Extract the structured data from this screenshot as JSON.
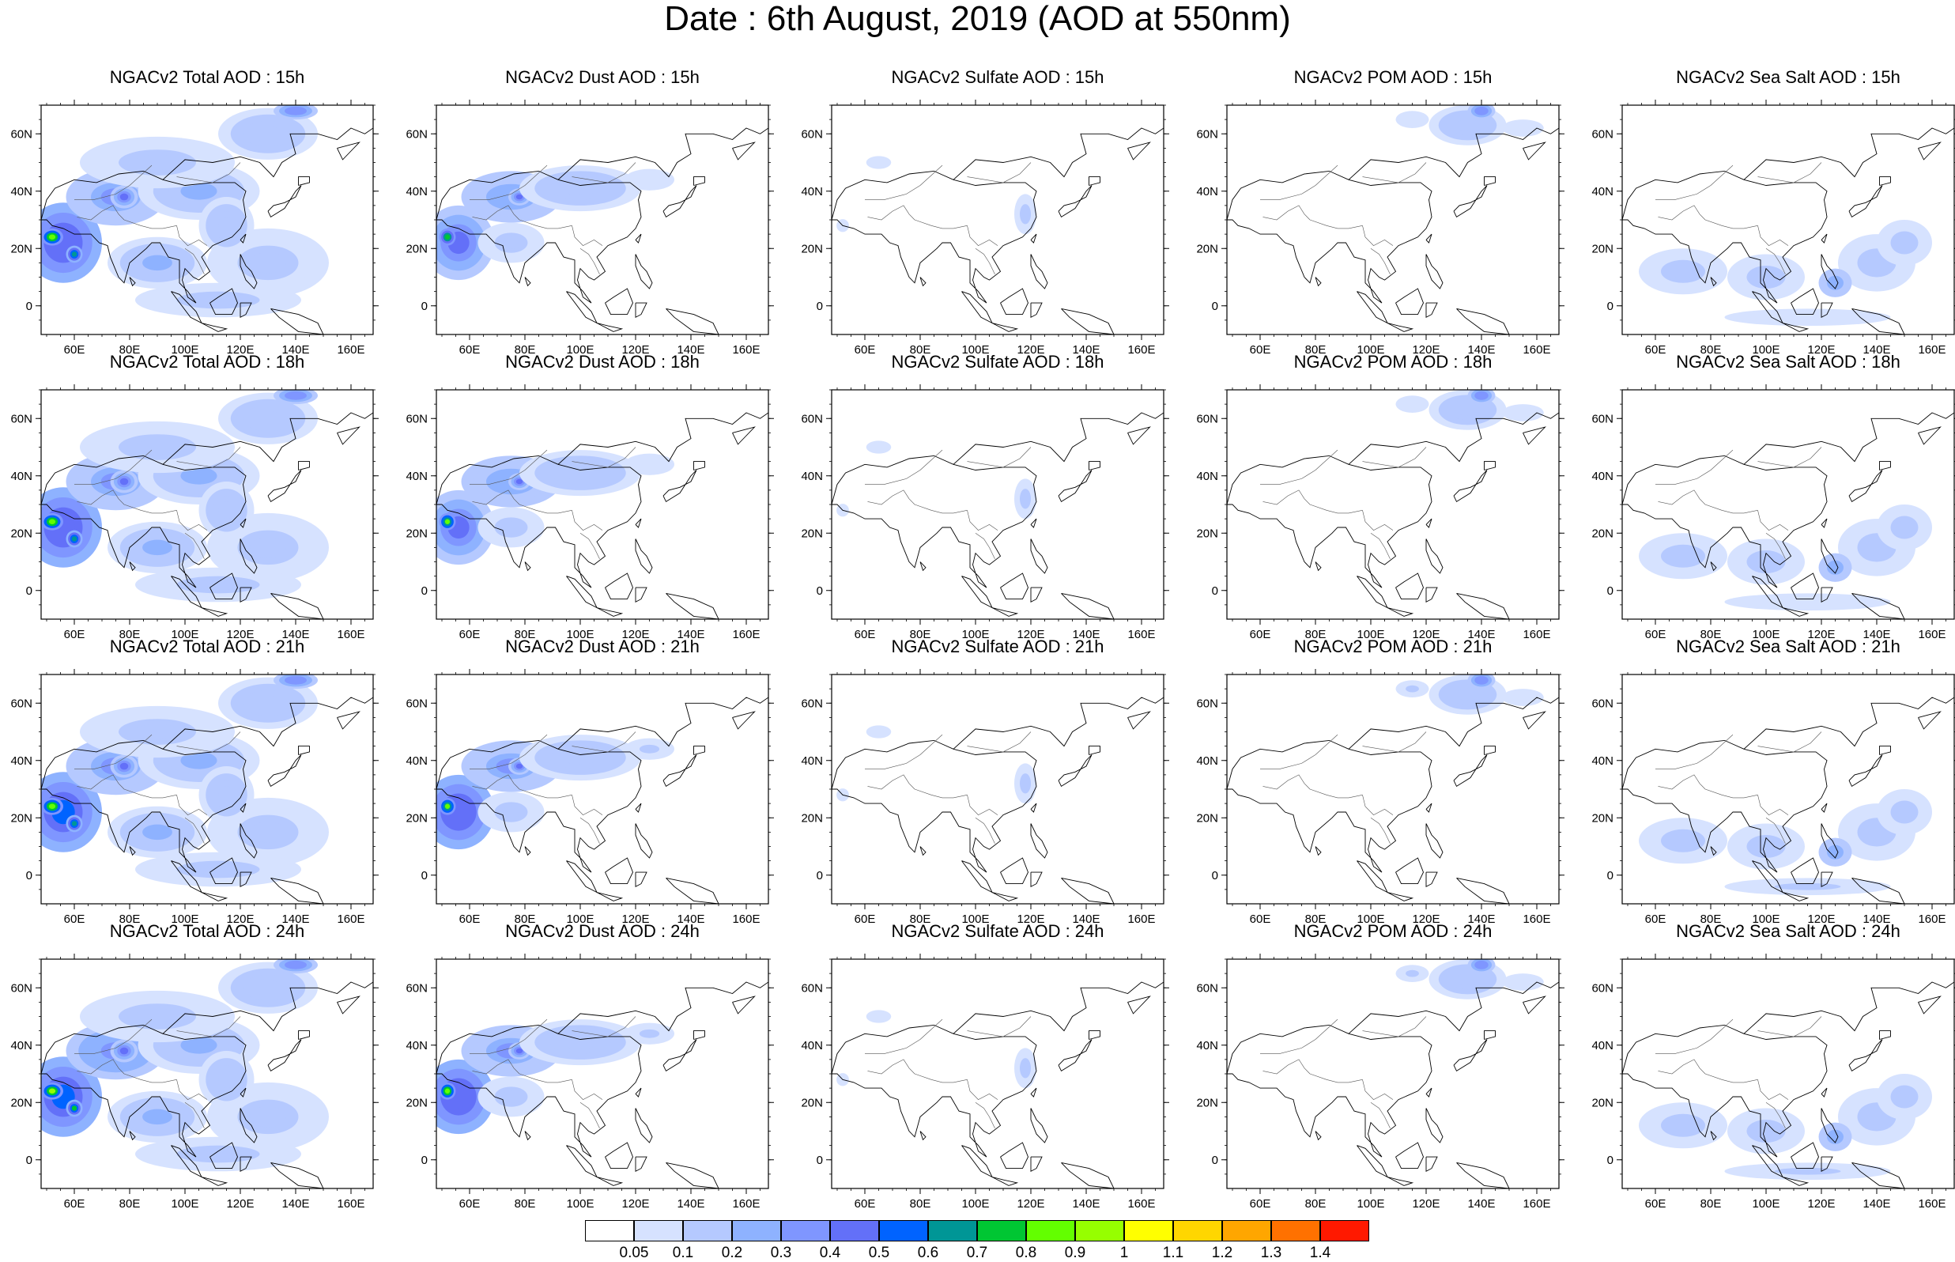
{
  "title": "Date : 6th August, 2019 (AOD at 550nm)",
  "map": {
    "lon_range": [
      48,
      168
    ],
    "lat_range": [
      -10,
      70
    ],
    "lon_ticks": [
      "60E",
      "80E",
      "100E",
      "120E",
      "140E",
      "160E"
    ],
    "lat_ticks": [
      "0",
      "20N",
      "40N",
      "60N"
    ]
  },
  "panels": [
    [
      {
        "title": "NGACv2 Total AOD : 15h",
        "field": "total",
        "hour": 15
      },
      {
        "title": "NGACv2 Dust AOD : 15h",
        "field": "dust",
        "hour": 15
      },
      {
        "title": "NGACv2 Sulfate AOD : 15h",
        "field": "sulfate",
        "hour": 15
      },
      {
        "title": "NGACv2 POM AOD : 15h",
        "field": "pom",
        "hour": 15
      },
      {
        "title": "NGACv2 Sea Salt AOD : 15h",
        "field": "seasalt",
        "hour": 15
      }
    ],
    [
      {
        "title": "NGACv2 Total AOD : 18h",
        "field": "total",
        "hour": 18
      },
      {
        "title": "NGACv2 Dust AOD : 18h",
        "field": "dust",
        "hour": 18
      },
      {
        "title": "NGACv2 Sulfate AOD : 18h",
        "field": "sulfate",
        "hour": 18
      },
      {
        "title": "NGACv2 POM AOD : 18h",
        "field": "pom",
        "hour": 18
      },
      {
        "title": "NGACv2 Sea Salt AOD : 18h",
        "field": "seasalt",
        "hour": 18
      }
    ],
    [
      {
        "title": "NGACv2 Total AOD : 21h",
        "field": "total",
        "hour": 21
      },
      {
        "title": "NGACv2 Dust AOD : 21h",
        "field": "dust",
        "hour": 21
      },
      {
        "title": "NGACv2 Sulfate AOD : 21h",
        "field": "sulfate",
        "hour": 21
      },
      {
        "title": "NGACv2 POM AOD : 21h",
        "field": "pom",
        "hour": 21
      },
      {
        "title": "NGACv2 Sea Salt AOD : 21h",
        "field": "seasalt",
        "hour": 21
      }
    ],
    [
      {
        "title": "NGACv2 Total AOD : 24h",
        "field": "total",
        "hour": 24
      },
      {
        "title": "NGACv2 Dust AOD : 24h",
        "field": "dust",
        "hour": 24
      },
      {
        "title": "NGACv2 Sulfate AOD : 24h",
        "field": "sulfate",
        "hour": 24
      },
      {
        "title": "NGACv2 POM AOD : 24h",
        "field": "pom",
        "hour": 24
      },
      {
        "title": "NGACv2 Sea Salt  AOD : 24h",
        "field": "seasalt",
        "hour": 24
      }
    ]
  ],
  "colorbar": {
    "labels": [
      "0.05",
      "0.1",
      "0.2",
      "0.3",
      "0.4",
      "0.5",
      "0.6",
      "0.7",
      "0.8",
      "0.9",
      "1",
      "1.1",
      "1.2",
      "1.3",
      "1.4"
    ],
    "colors": [
      "#ffffff",
      "#d6e2ff",
      "#b5c9ff",
      "#8eb2ff",
      "#7f96ff",
      "#6370f8",
      "#0063ff",
      "#009696",
      "#00c633",
      "#63ff00",
      "#96ff00",
      "#ffff00",
      "#ffd600",
      "#ffa600",
      "#ff7100",
      "#ff1900"
    ]
  },
  "plumes": {
    "total": [
      {
        "lon": 56,
        "lat": 22,
        "rlon": 14,
        "rlat": 14,
        "v": 0.4
      },
      {
        "lon": 52,
        "lat": 24,
        "rlon": 4,
        "rlat": 3,
        "v": 0.7
      },
      {
        "lon": 60,
        "lat": 18,
        "rlon": 3,
        "rlat": 3,
        "v": 0.55
      },
      {
        "lon": 75,
        "lat": 38,
        "rlon": 18,
        "rlat": 10,
        "v": 0.25
      },
      {
        "lon": 78,
        "lat": 38,
        "rlon": 5,
        "rlat": 4,
        "v": 0.35
      },
      {
        "lon": 105,
        "lat": 40,
        "rlon": 22,
        "rlat": 10,
        "v": 0.18
      },
      {
        "lon": 90,
        "lat": 50,
        "rlon": 28,
        "rlat": 9,
        "v": 0.12
      },
      {
        "lon": 90,
        "lat": 15,
        "rlon": 18,
        "rlat": 9,
        "v": 0.18
      },
      {
        "lon": 130,
        "lat": 15,
        "rlon": 22,
        "rlat": 12,
        "v": 0.12
      },
      {
        "lon": 130,
        "lat": 60,
        "rlon": 18,
        "rlat": 9,
        "v": 0.15
      },
      {
        "lon": 140,
        "lat": 68,
        "rlon": 8,
        "rlat": 3,
        "v": 0.3
      },
      {
        "lon": 112,
        "lat": 2,
        "rlon": 30,
        "rlat": 6,
        "v": 0.12
      },
      {
        "lon": 115,
        "lat": 28,
        "rlon": 10,
        "rlat": 10,
        "v": 0.14
      }
    ],
    "dust": [
      {
        "lon": 56,
        "lat": 22,
        "rlon": 13,
        "rlat": 13,
        "v": 0.38
      },
      {
        "lon": 52,
        "lat": 24,
        "rlon": 3,
        "rlat": 3,
        "v": 0.65
      },
      {
        "lon": 75,
        "lat": 38,
        "rlon": 18,
        "rlat": 9,
        "v": 0.24
      },
      {
        "lon": 78,
        "lat": 38,
        "rlon": 4,
        "rlat": 3,
        "v": 0.34
      },
      {
        "lon": 100,
        "lat": 41,
        "rlon": 22,
        "rlat": 8,
        "v": 0.15
      },
      {
        "lon": 125,
        "lat": 44,
        "rlon": 12,
        "rlat": 5,
        "v": 0.08
      },
      {
        "lon": 75,
        "lat": 22,
        "rlon": 12,
        "rlat": 7,
        "v": 0.11
      }
    ],
    "sulfate": [
      {
        "lon": 118,
        "lat": 32,
        "rlon": 4,
        "rlat": 7,
        "v": 0.1
      },
      {
        "lon": 65,
        "lat": 50,
        "rlon": 6,
        "rlat": 3,
        "v": 0.07
      },
      {
        "lon": 52,
        "lat": 28,
        "rlon": 3,
        "rlat": 3,
        "v": 0.07
      }
    ],
    "pom": [
      {
        "lon": 135,
        "lat": 63,
        "rlon": 14,
        "rlat": 7,
        "v": 0.14
      },
      {
        "lon": 140,
        "lat": 68,
        "rlon": 5,
        "rlat": 3,
        "v": 0.3
      },
      {
        "lon": 115,
        "lat": 65,
        "rlon": 8,
        "rlat": 4,
        "v": 0.08
      },
      {
        "lon": 155,
        "lat": 62,
        "rlon": 10,
        "rlat": 4,
        "v": 0.07
      }
    ],
    "seasalt": [
      {
        "lon": 70,
        "lat": 12,
        "rlon": 16,
        "rlat": 8,
        "v": 0.12
      },
      {
        "lon": 100,
        "lat": 10,
        "rlon": 14,
        "rlat": 8,
        "v": 0.12
      },
      {
        "lon": 140,
        "lat": 15,
        "rlon": 14,
        "rlat": 10,
        "v": 0.12
      },
      {
        "lon": 150,
        "lat": 22,
        "rlon": 10,
        "rlat": 8,
        "v": 0.1
      },
      {
        "lon": 125,
        "lat": 8,
        "rlon": 6,
        "rlat": 5,
        "v": 0.2
      },
      {
        "lon": 115,
        "lat": -4,
        "rlon": 40,
        "rlat": 4,
        "v": 0.08
      }
    ]
  }
}
